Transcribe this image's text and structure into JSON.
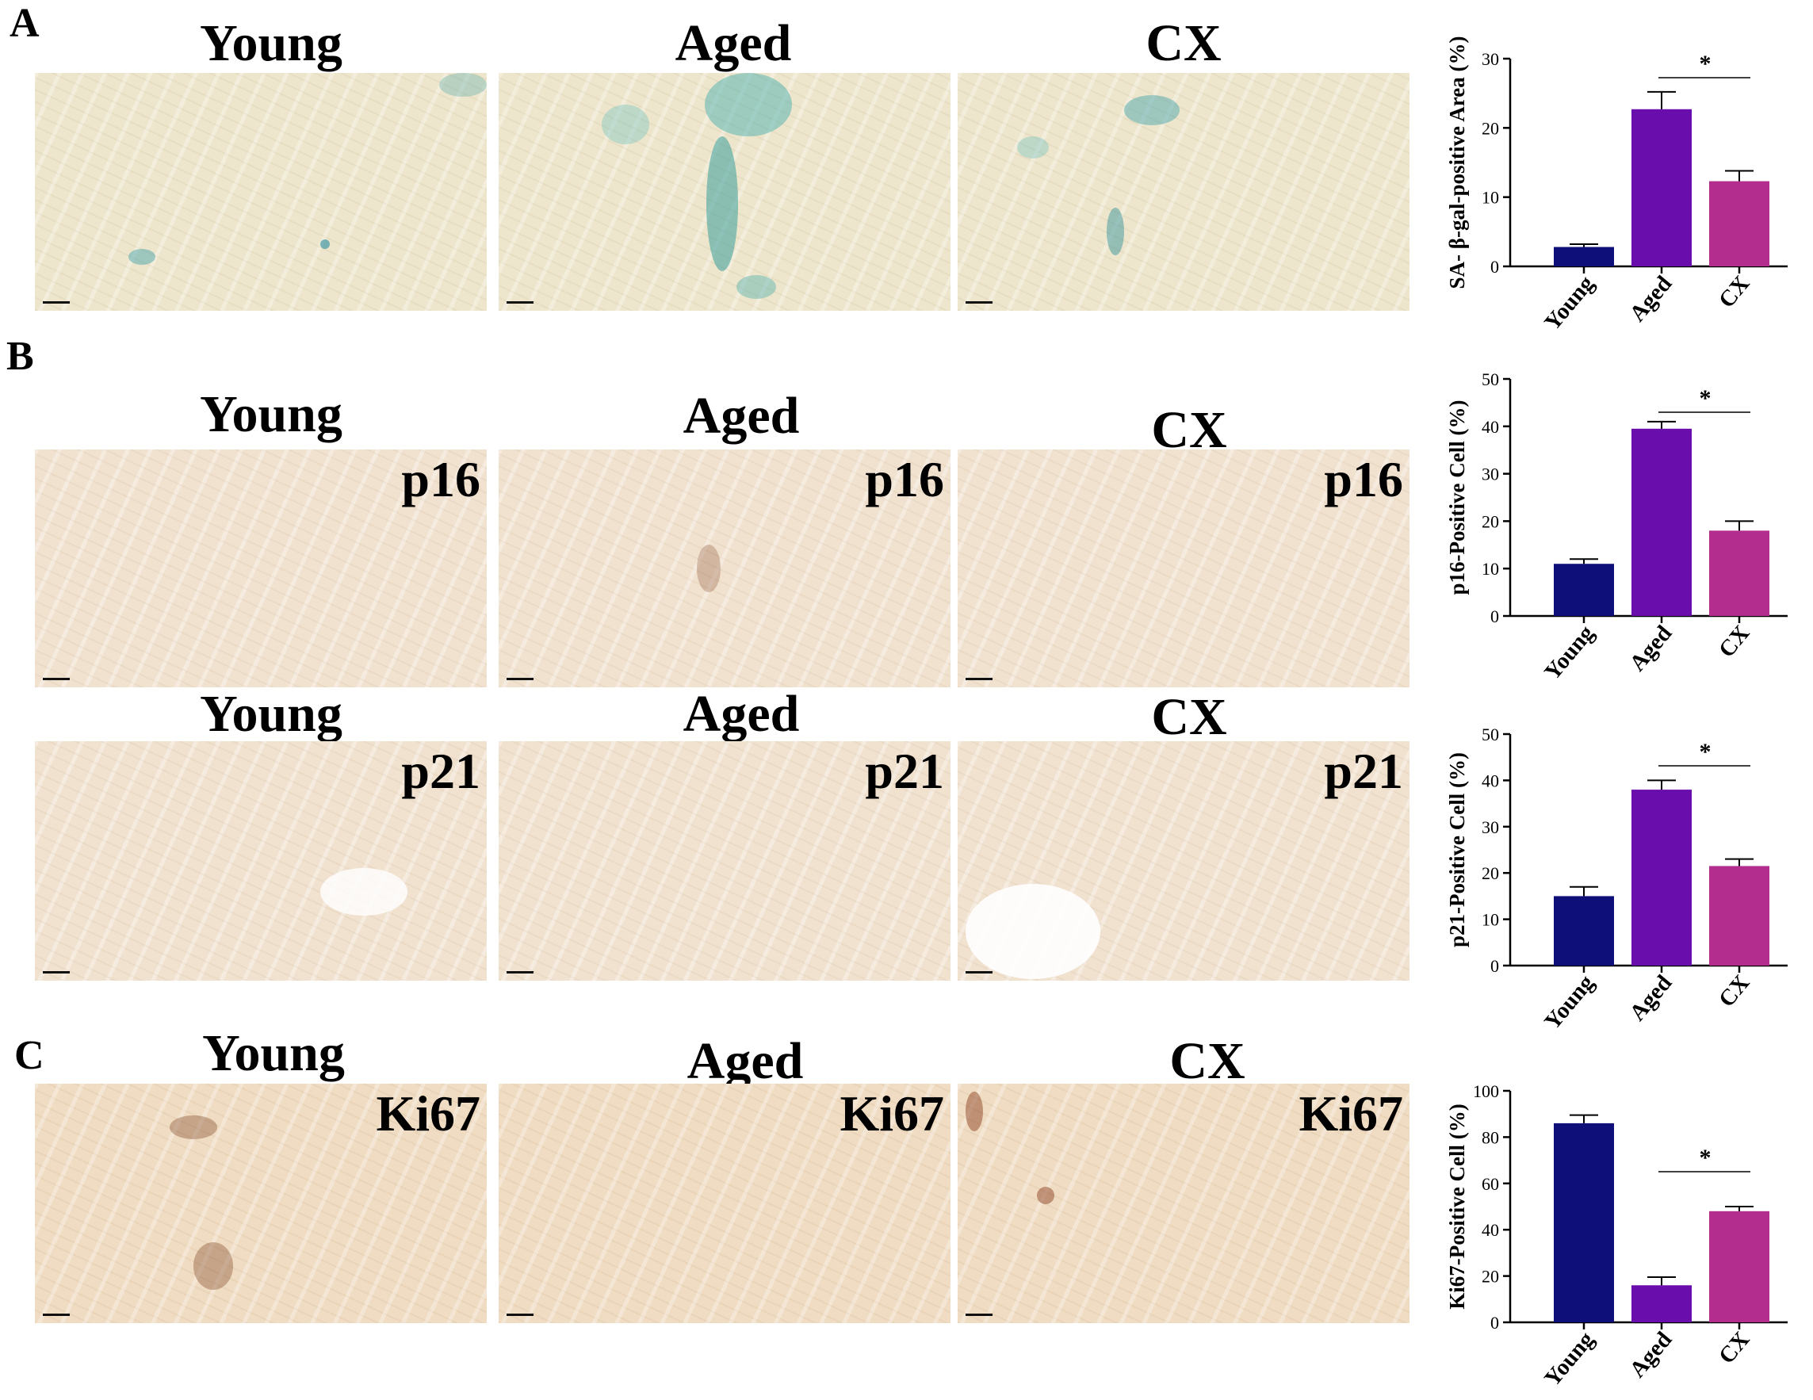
{
  "panels": [
    {
      "id": "A",
      "label": "A",
      "columns": [
        "Young",
        "Aged",
        "CX"
      ]
    },
    {
      "id": "B",
      "label": "B",
      "columns": [
        "Young",
        "Aged",
        "CX"
      ],
      "row1_marker": "p16",
      "row2_marker": "p21"
    },
    {
      "id": "C",
      "label": "C",
      "columns": [
        "Young",
        "Aged",
        "CX"
      ],
      "marker": "Ki67"
    }
  ],
  "chart_data": [
    {
      "type": "bar",
      "categories": [
        "Young",
        "Aged",
        "CX"
      ],
      "values": [
        2.8,
        22.7,
        12.3
      ],
      "errors": [
        0.4,
        2.5,
        1.5
      ],
      "ylabel": "SA- β-gal-positive Area (%)",
      "ylim": [
        0,
        30
      ],
      "yticks": [
        0,
        10,
        20,
        30
      ],
      "significance": {
        "from": "Aged",
        "to": "CX",
        "label": "*"
      },
      "colors": [
        "#0f0f7a",
        "#6a0dad",
        "#b32d8f"
      ]
    },
    {
      "type": "bar",
      "categories": [
        "Young",
        "Aged",
        "CX"
      ],
      "values": [
        11,
        39.5,
        18
      ],
      "errors": [
        1,
        1.5,
        2
      ],
      "ylabel": "p16-Positive Cell (%)",
      "ylim": [
        0,
        50
      ],
      "yticks": [
        0,
        10,
        20,
        30,
        40,
        50
      ],
      "significance": {
        "from": "Aged",
        "to": "CX",
        "label": "*"
      },
      "colors": [
        "#0f0f7a",
        "#6a0dad",
        "#b32d8f"
      ]
    },
    {
      "type": "bar",
      "categories": [
        "Young",
        "Aged",
        "CX"
      ],
      "values": [
        15,
        38,
        21.5
      ],
      "errors": [
        2,
        2,
        1.5
      ],
      "ylabel": "p21-Positive Cell (%)",
      "ylim": [
        0,
        50
      ],
      "yticks": [
        0,
        10,
        20,
        30,
        40,
        50
      ],
      "significance": {
        "from": "Aged",
        "to": "CX",
        "label": "*"
      },
      "colors": [
        "#0f0f7a",
        "#6a0dad",
        "#b32d8f"
      ]
    },
    {
      "type": "bar",
      "categories": [
        "Young",
        "Aged",
        "CX"
      ],
      "values": [
        86,
        16,
        48
      ],
      "errors": [
        3.5,
        3.5,
        2
      ],
      "ylabel": "Ki67-Positive Cell (%)",
      "ylim": [
        0,
        100
      ],
      "yticks": [
        0,
        20,
        40,
        60,
        80,
        100
      ],
      "significance": {
        "from": "Aged",
        "to": "CX",
        "label": "*"
      },
      "colors": [
        "#0f0f7a",
        "#6a0dad",
        "#b32d8f"
      ]
    }
  ]
}
